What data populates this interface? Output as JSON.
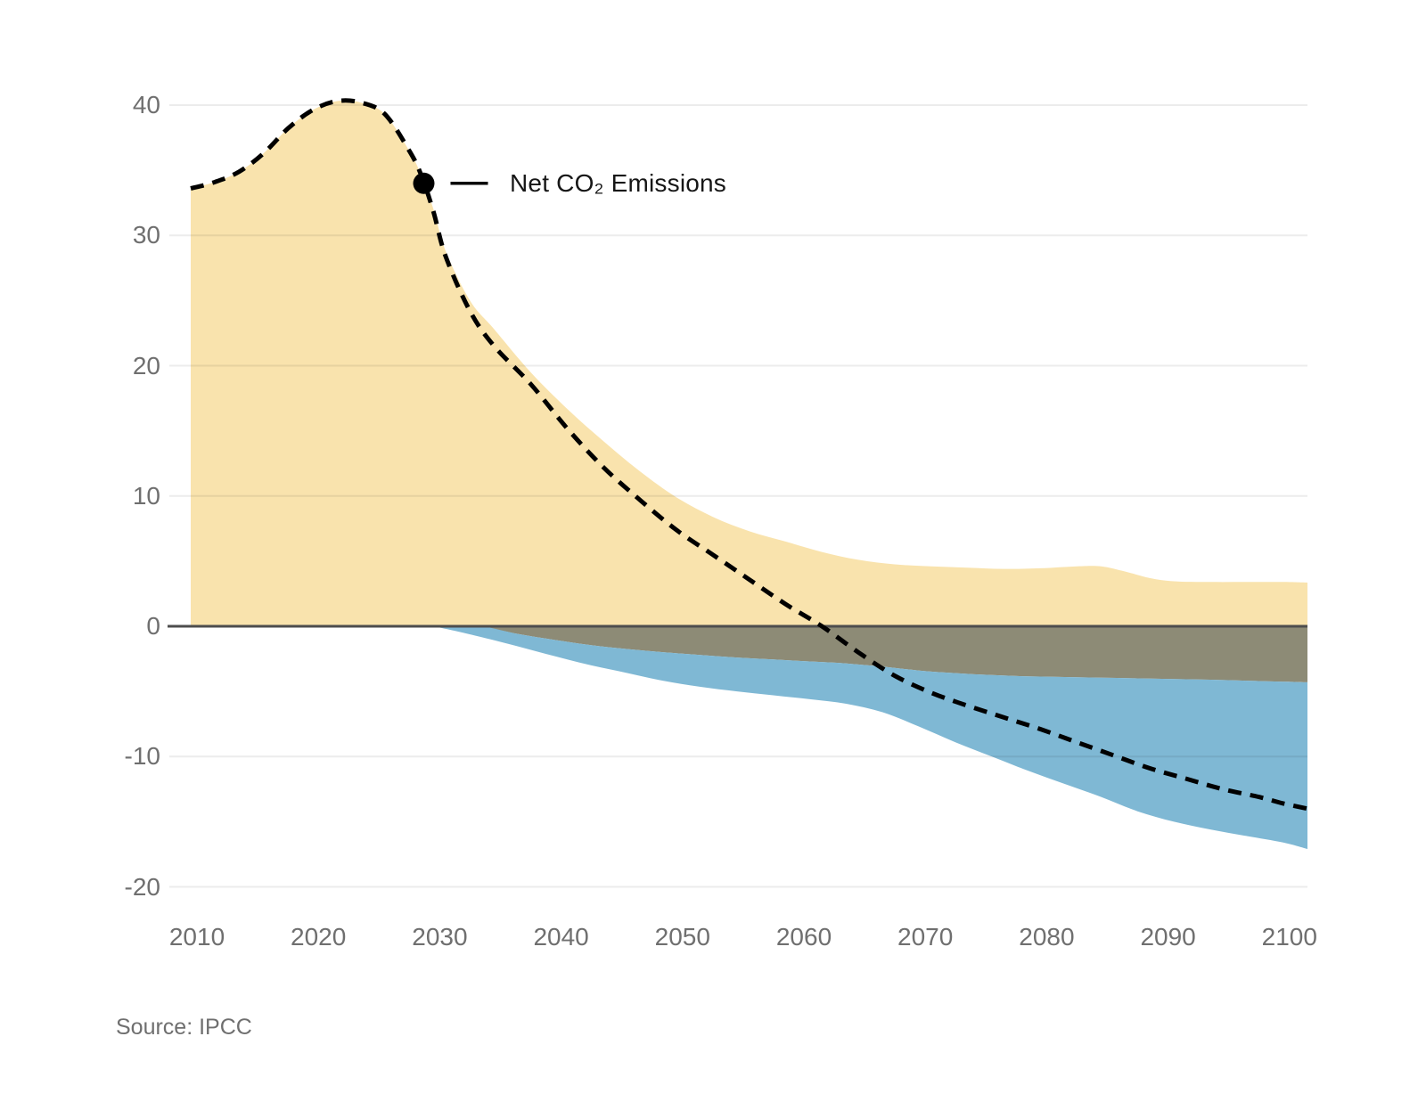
{
  "chart_data": {
    "type": "area",
    "title": "",
    "source": "Source: IPCC",
    "x_axis": {
      "ticks": [
        2010,
        2020,
        2030,
        2040,
        2050,
        2060,
        2070,
        2080,
        2090,
        2100
      ],
      "range": [
        2010,
        2102
      ],
      "label": ""
    },
    "y_axis": {
      "ticks": [
        40,
        30,
        20,
        10,
        0,
        -10,
        -20
      ],
      "range": [
        -20,
        41
      ],
      "label": ""
    },
    "grid": "horizontal",
    "legend": "none",
    "annotation": {
      "label": "Net CO₂ Emissions",
      "marker_year": 2029.2,
      "marker_value": 34.0
    },
    "colors": {
      "background": "#ffffff",
      "positive_area": "#F9E3AD",
      "gray_negative_band": "#8D8B76",
      "blue_negative_band": "#7FB8D4",
      "net_line": "#000000",
      "zero_line": "#4D4D4D",
      "gridline": "rgba(17,17,17,0.08)",
      "tick_text": "#6F6F6F",
      "annotation_text": "#161616",
      "source_text": "#6F6F6F"
    },
    "series": [
      {
        "name": "gross-positive-emissions-area-top",
        "style": "area-to-zero-baseline",
        "color": "#F9E3AD",
        "points": [
          [
            2010,
            33.6
          ],
          [
            2012,
            34.1
          ],
          [
            2014,
            34.9
          ],
          [
            2016,
            36.3
          ],
          [
            2018,
            38.2
          ],
          [
            2020,
            39.6
          ],
          [
            2022,
            40.3
          ],
          [
            2024,
            40.2
          ],
          [
            2026,
            39.3
          ],
          [
            2028,
            36.5
          ],
          [
            2029,
            34.6
          ],
          [
            2030,
            32.0
          ],
          [
            2031,
            28.8
          ],
          [
            2033,
            25.0
          ],
          [
            2035,
            22.8
          ],
          [
            2038,
            19.5
          ],
          [
            2041,
            16.7
          ],
          [
            2044,
            14.2
          ],
          [
            2047,
            11.9
          ],
          [
            2050,
            9.9
          ],
          [
            2053,
            8.4
          ],
          [
            2056,
            7.3
          ],
          [
            2059,
            6.5
          ],
          [
            2062,
            5.7
          ],
          [
            2065,
            5.1
          ],
          [
            2068,
            4.75
          ],
          [
            2071,
            4.6
          ],
          [
            2074,
            4.5
          ],
          [
            2077,
            4.4
          ],
          [
            2080,
            4.45
          ],
          [
            2083,
            4.6
          ],
          [
            2085,
            4.6
          ],
          [
            2087,
            4.2
          ],
          [
            2089,
            3.7
          ],
          [
            2091,
            3.45
          ],
          [
            2094,
            3.4
          ],
          [
            2097,
            3.4
          ],
          [
            2100,
            3.4
          ],
          [
            2102,
            3.35
          ]
        ]
      },
      {
        "name": "gray-negative-band-bottom",
        "style": "area-from-zero-baseline",
        "color": "#8D8B76",
        "points": [
          [
            2034,
            0
          ],
          [
            2037,
            -0.6
          ],
          [
            2040,
            -1.05
          ],
          [
            2043,
            -1.45
          ],
          [
            2046,
            -1.75
          ],
          [
            2049,
            -2.0
          ],
          [
            2052,
            -2.2
          ],
          [
            2055,
            -2.4
          ],
          [
            2058,
            -2.55
          ],
          [
            2061,
            -2.7
          ],
          [
            2064,
            -2.85
          ],
          [
            2067,
            -3.1
          ],
          [
            2070,
            -3.4
          ],
          [
            2073,
            -3.6
          ],
          [
            2076,
            -3.75
          ],
          [
            2079,
            -3.85
          ],
          [
            2082,
            -3.9
          ],
          [
            2085,
            -3.95
          ],
          [
            2088,
            -4.0
          ],
          [
            2091,
            -4.05
          ],
          [
            2094,
            -4.1
          ],
          [
            2097,
            -4.18
          ],
          [
            2100,
            -4.25
          ],
          [
            2102,
            -4.3
          ]
        ]
      },
      {
        "name": "blue-negative-band-bottom",
        "style": "area-below-gray-band",
        "color": "#7FB8D4",
        "top_start": [
          [
            2030,
            0
          ],
          [
            2032,
            0
          ]
        ],
        "points": [
          [
            2030,
            0
          ],
          [
            2032,
            -0.4
          ],
          [
            2034,
            -0.85
          ],
          [
            2037,
            -1.55
          ],
          [
            2040,
            -2.3
          ],
          [
            2043,
            -3.0
          ],
          [
            2046,
            -3.6
          ],
          [
            2049,
            -4.2
          ],
          [
            2052,
            -4.65
          ],
          [
            2055,
            -5.0
          ],
          [
            2058,
            -5.3
          ],
          [
            2061,
            -5.6
          ],
          [
            2064,
            -5.95
          ],
          [
            2067,
            -6.6
          ],
          [
            2070,
            -7.7
          ],
          [
            2073,
            -8.9
          ],
          [
            2076,
            -10.0
          ],
          [
            2079,
            -11.1
          ],
          [
            2082,
            -12.1
          ],
          [
            2085,
            -13.1
          ],
          [
            2088,
            -14.2
          ],
          [
            2091,
            -15.0
          ],
          [
            2094,
            -15.6
          ],
          [
            2097,
            -16.1
          ],
          [
            2100,
            -16.6
          ],
          [
            2102,
            -17.1
          ]
        ]
      },
      {
        "name": "net-co2-emissions",
        "style": "dashed-line",
        "color": "#000000",
        "points": [
          [
            2010,
            33.6
          ],
          [
            2012,
            34.1
          ],
          [
            2014,
            34.9
          ],
          [
            2016,
            36.3
          ],
          [
            2018,
            38.2
          ],
          [
            2020,
            39.6
          ],
          [
            2022,
            40.3
          ],
          [
            2024,
            40.2
          ],
          [
            2026,
            39.3
          ],
          [
            2028,
            36.5
          ],
          [
            2029,
            34.6
          ],
          [
            2030,
            31.8
          ],
          [
            2031,
            28.4
          ],
          [
            2033,
            24.2
          ],
          [
            2035,
            21.5
          ],
          [
            2038,
            18.6
          ],
          [
            2041,
            15.2
          ],
          [
            2044,
            12.2
          ],
          [
            2047,
            9.7
          ],
          [
            2050,
            7.4
          ],
          [
            2053,
            5.5
          ],
          [
            2056,
            3.6
          ],
          [
            2059,
            1.7
          ],
          [
            2062,
            0.0
          ],
          [
            2065,
            -2.0
          ],
          [
            2068,
            -3.8
          ],
          [
            2071,
            -5.1
          ],
          [
            2074,
            -6.1
          ],
          [
            2077,
            -7.0
          ],
          [
            2080,
            -7.9
          ],
          [
            2083,
            -8.9
          ],
          [
            2086,
            -9.9
          ],
          [
            2089,
            -10.9
          ],
          [
            2092,
            -11.7
          ],
          [
            2095,
            -12.5
          ],
          [
            2098,
            -13.1
          ],
          [
            2100,
            -13.6
          ],
          [
            2102,
            -14.0
          ]
        ]
      }
    ]
  }
}
